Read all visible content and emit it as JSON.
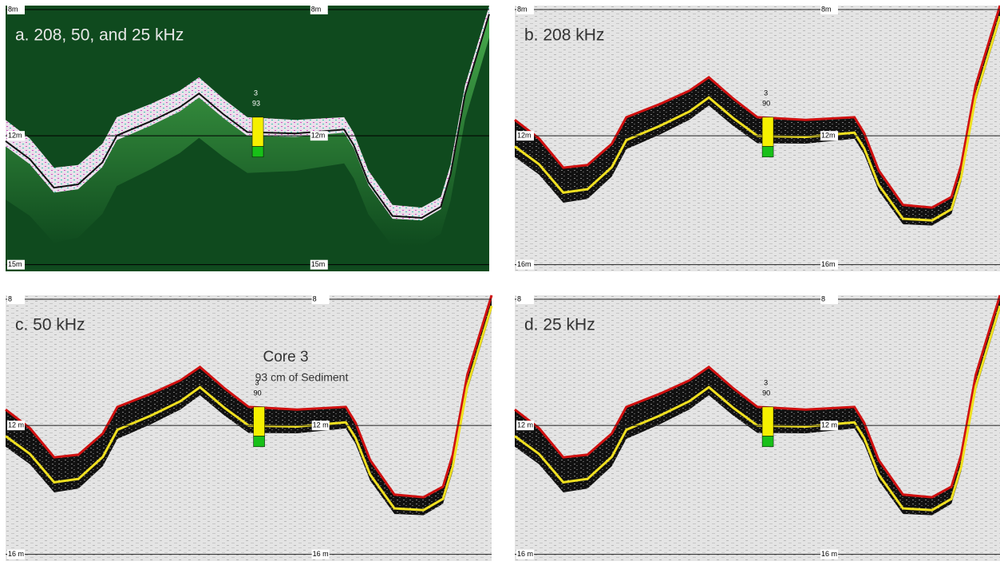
{
  "panels": [
    {
      "label": "a. 208, 50, and 25 kHz",
      "core_label": [
        "3",
        "93"
      ],
      "scale": [
        {
          "left": "8m",
          "mid": "8m"
        },
        {
          "left": "12m",
          "mid": "12m"
        },
        {
          "left": "15m",
          "mid": "15m"
        }
      ]
    },
    {
      "label": "b. 208 kHz",
      "core_label": [
        "3",
        "90"
      ],
      "scale": [
        {
          "left": "8m",
          "mid": "8m"
        },
        {
          "left": "12m",
          "mid": "12m"
        },
        {
          "left": "16m",
          "mid": "16m"
        }
      ]
    },
    {
      "label": "c.  50 kHz",
      "core_label": [
        "3",
        "90"
      ],
      "scale": [
        {
          "left": "8",
          "mid": "8"
        },
        {
          "left": "12 m",
          "mid": "12 m"
        },
        {
          "left": "16 m",
          "mid": "16 m"
        }
      ]
    },
    {
      "label": "d. 25 kHz",
      "core_label": [
        "3",
        "90"
      ],
      "scale": [
        {
          "left": "8",
          "mid": "8"
        },
        {
          "left": "12 m",
          "mid": "12 m"
        },
        {
          "left": "16 m",
          "mid": "16 m"
        }
      ]
    }
  ],
  "annotation": {
    "title": "Core 3",
    "subtitle": "93 cm of Sediment"
  }
}
